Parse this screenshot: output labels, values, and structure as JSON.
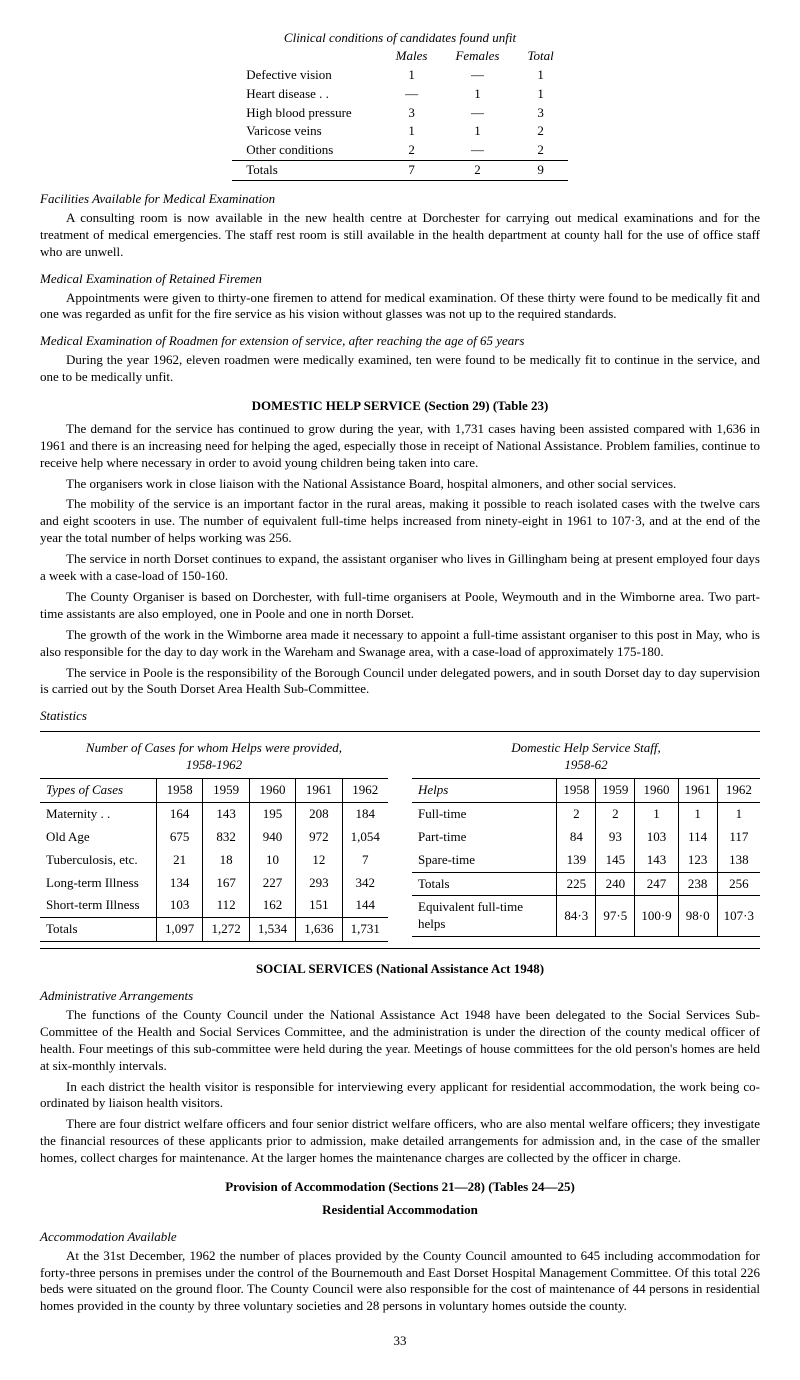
{
  "clinical": {
    "title": "Clinical conditions of candidates found unfit",
    "headers": {
      "males": "Males",
      "females": "Females",
      "total": "Total"
    },
    "rows": [
      {
        "label": "Defective vision",
        "males": "1",
        "females": "—",
        "total": "1"
      },
      {
        "label": "Heart disease . .",
        "males": "—",
        "females": "1",
        "total": "1"
      },
      {
        "label": "High blood pressure",
        "males": "3",
        "females": "—",
        "total": "3"
      },
      {
        "label": "Varicose veins",
        "males": "1",
        "females": "1",
        "total": "2"
      },
      {
        "label": "Other conditions",
        "males": "2",
        "females": "—",
        "total": "2"
      }
    ],
    "totals": {
      "label": "Totals",
      "males": "7",
      "females": "2",
      "total": "9"
    }
  },
  "facilities": {
    "heading": "Facilities Available for Medical Examination",
    "text": "A consulting room is now available in the new health centre at Dorchester for carrying out medical examinations and for the treatment of medical emergencies. The staff rest room is still available in the health department at county hall for the use of office staff who are unwell."
  },
  "retained": {
    "heading": "Medical Examination of Retained Firemen",
    "text": "Appointments were given to thirty-one firemen to attend for medical examination. Of these thirty were found to be medically fit and one was regarded as unfit for the fire service as his vision without glasses was not up to the required standards."
  },
  "roadmen": {
    "heading": "Medical Examination of Roadmen for extension of service, after reaching the age of 65 years",
    "text": "During the year 1962, eleven roadmen were medically examined, ten were found to be medically fit to continue in the service, and one to be medically unfit."
  },
  "domestic": {
    "heading": "DOMESTIC HELP SERVICE (Section 29) (Table 23)",
    "p1": "The demand for the service has continued to grow during the year, with 1,731 cases having been assisted compared with 1,636 in 1961 and there is an increasing need for helping the aged, especially those in receipt of National Assistance. Problem families, continue to receive help where necessary in order to avoid young children being taken into care.",
    "p2": "The organisers work in close liaison with the National Assistance Board, hospital almoners, and other social services.",
    "p3": "The mobility of the service is an important factor in the rural areas, making it possible to reach isolated cases with the twelve cars and eight scooters in use. The number of equivalent full-time helps increased from ninety-eight in 1961 to 107·3, and at the end of the year the total number of helps working was 256.",
    "p4": "The service in north Dorset continues to expand, the assistant organiser who lives in Gillingham being at present employed four days a week with a case-load of 150-160.",
    "p5": "The County Organiser is based on Dorchester, with full-time organisers at Poole, Weymouth and in the Wimborne area. Two part-time assistants are also employed, one in Poole and one in north Dorset.",
    "p6": "The growth of the work in the Wimborne area made it necessary to appoint a full-time assistant organiser to this post in May, who is also responsible for the day to day work in the Wareham and Swanage area, with a case-load of approximately 175-180.",
    "p7": "The service in Poole is the responsibility of the Borough Council under delegated powers, and in south Dorset day to day supervision is carried out by the South Dorset Area Health Sub-Committee."
  },
  "statsLabel": "Statistics",
  "statsLeft": {
    "caption": "Number of Cases for whom Helps were provided,",
    "caption2": "1958-1962",
    "typesHeader": "Types of Cases",
    "years": [
      "1958",
      "1959",
      "1960",
      "1961",
      "1962"
    ],
    "rows": [
      {
        "label": "Maternity . .",
        "vals": [
          "164",
          "143",
          "195",
          "208",
          "184"
        ]
      },
      {
        "label": "Old Age",
        "vals": [
          "675",
          "832",
          "940",
          "972",
          "1,054"
        ]
      },
      {
        "label": "Tuberculosis, etc.",
        "vals": [
          "21",
          "18",
          "10",
          "12",
          "7"
        ]
      },
      {
        "label": "Long-term Illness",
        "vals": [
          "134",
          "167",
          "227",
          "293",
          "342"
        ]
      },
      {
        "label": "Short-term Illness",
        "vals": [
          "103",
          "112",
          "162",
          "151",
          "144"
        ]
      }
    ],
    "totals": {
      "label": "Totals",
      "vals": [
        "1,097",
        "1,272",
        "1,534",
        "1,636",
        "1,731"
      ]
    }
  },
  "statsRight": {
    "caption": "Domestic Help Service Staff,",
    "caption2": "1958-62",
    "helpsHeader": "Helps",
    "years": [
      "1958",
      "1959",
      "1960",
      "1961",
      "1962"
    ],
    "rows": [
      {
        "label": "Full-time",
        "vals": [
          "2",
          "2",
          "1",
          "1",
          "1"
        ]
      },
      {
        "label": "Part-time",
        "vals": [
          "84",
          "93",
          "103",
          "114",
          "117"
        ]
      },
      {
        "label": "Spare-time",
        "vals": [
          "139",
          "145",
          "143",
          "123",
          "138"
        ]
      }
    ],
    "totals": {
      "label": "Totals",
      "vals": [
        "225",
        "240",
        "247",
        "238",
        "256"
      ]
    },
    "equiv": {
      "label": "Equivalent full-time helps",
      "vals": [
        "84·3",
        "97·5",
        "100·9",
        "98·0",
        "107·3"
      ]
    }
  },
  "social": {
    "heading": "SOCIAL SERVICES (National Assistance Act 1948)",
    "subheading": "Administrative Arrangements",
    "p1": "The functions of the County Council under the National Assistance Act 1948 have been delegated to the Social Services Sub-Committee of the Health and Social Services Committee, and the administration is under the direction of the county medical officer of health. Four meetings of this sub-committee were held during the year. Meetings of house committees for the old person's homes are held at six-monthly intervals.",
    "p2": "In each district the health visitor is responsible for interviewing every applicant for residential accommodation, the work being co-ordinated by liaison health visitors.",
    "p3": "There are four district welfare officers and four senior district welfare officers, who are also mental welfare officers; they investigate the financial resources of these applicants prior to admission, make detailed arrangements for admission and, in the case of the smaller homes, collect charges for maintenance. At the larger homes the maintenance charges are collected by the officer in charge."
  },
  "provision": {
    "heading": "Provision of Accommodation (Sections 21—28) (Tables 24—25)",
    "sub": "Residential Accommodation",
    "subheading": "Accommodation Available",
    "p1": "At the 31st December, 1962 the number of places provided by the County Council amounted to 645 including accommodation for forty-three persons in premises under the control of the Bournemouth and East Dorset Hospital Management Committee. Of this total 226 beds were situated on the ground floor. The County Council were also responsible for the cost of maintenance of 44 persons in residential homes provided in the county by three voluntary societies and 28 persons in voluntary homes outside the county."
  },
  "pageNumber": "33"
}
